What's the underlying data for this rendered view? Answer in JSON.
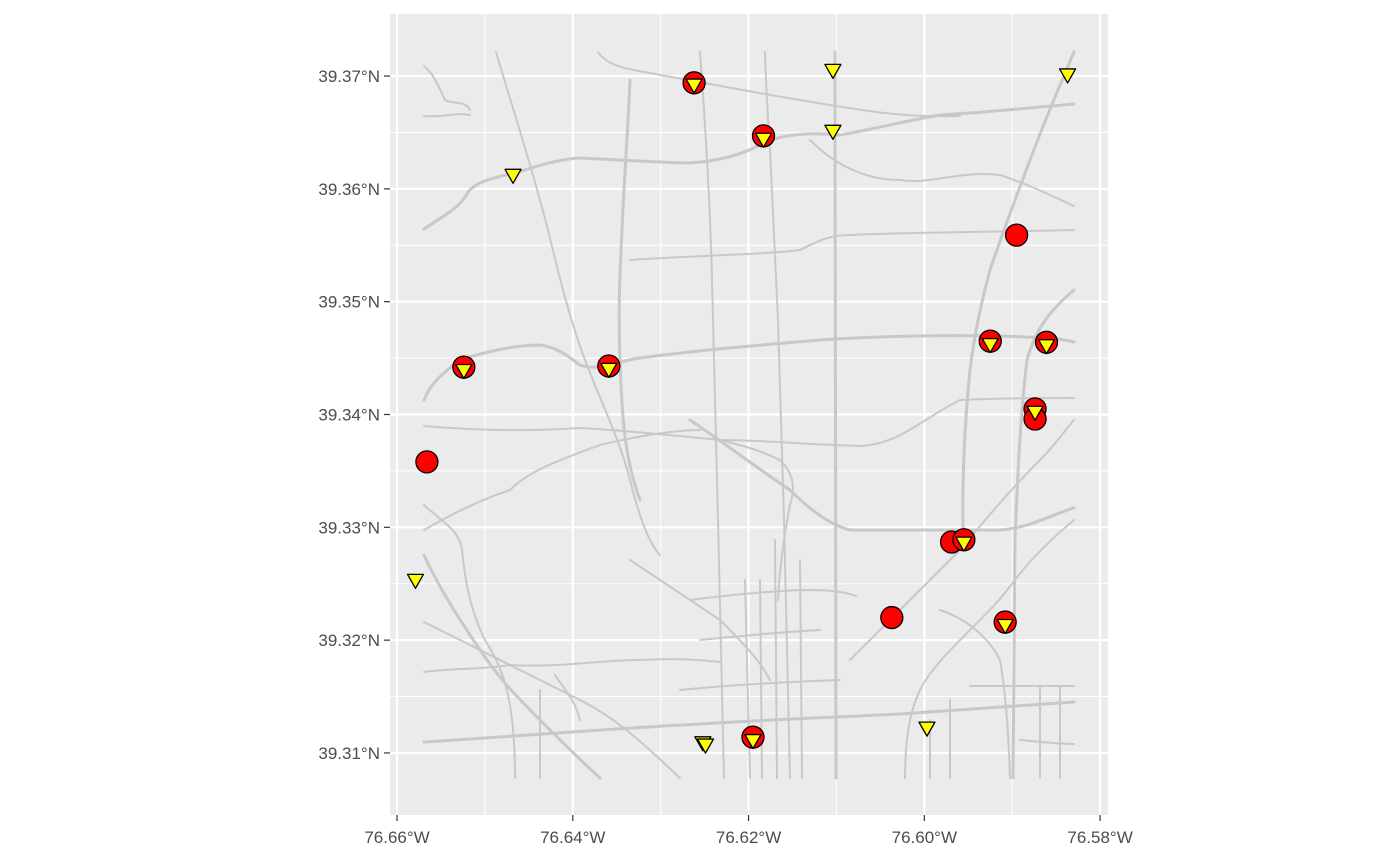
{
  "map": {
    "x_axis": {
      "ticks": [
        -76.66,
        -76.64,
        -76.62,
        -76.6,
        -76.58
      ],
      "tick_labels": [
        "76.66°W",
        "76.64°W",
        "76.62°W",
        "76.60°W",
        "76.58°W"
      ]
    },
    "y_axis": {
      "ticks": [
        39.31,
        39.32,
        39.33,
        39.34,
        39.35,
        39.36,
        39.37
      ],
      "tick_labels": [
        "39.31°N",
        "39.32°N",
        "39.33°N",
        "39.34°N",
        "39.35°N",
        "39.36°N",
        "39.37°N"
      ]
    },
    "colors": {
      "panel_background": "#ebebeb",
      "grid": "#ffffff",
      "roads": "#c8c8c8",
      "circle_fill": "#ff0000",
      "triangle_fill": "#ffff00",
      "outline": "#000000"
    }
  },
  "chart_data": {
    "type": "scatter",
    "xlim": [
      -76.6608,
      -76.5791
    ],
    "ylim": [
      39.3045,
      39.3755
    ],
    "grid": true,
    "series": [
      {
        "marker": "circle",
        "color": "#ff0000",
        "points": [
          {
            "lon": -76.6262,
            "lat": 39.3694
          },
          {
            "lon": -76.6183,
            "lat": 39.3647
          },
          {
            "lon": -76.5895,
            "lat": 39.3559
          },
          {
            "lon": -76.6524,
            "lat": 39.3442
          },
          {
            "lon": -76.6359,
            "lat": 39.3443
          },
          {
            "lon": -76.5925,
            "lat": 39.3465
          },
          {
            "lon": -76.5861,
            "lat": 39.3464
          },
          {
            "lon": -76.5874,
            "lat": 39.3405
          },
          {
            "lon": -76.5874,
            "lat": 39.3396
          },
          {
            "lon": -76.6566,
            "lat": 39.3358
          },
          {
            "lon": -76.5969,
            "lat": 39.3287
          },
          {
            "lon": -76.5955,
            "lat": 39.3289
          },
          {
            "lon": -76.6037,
            "lat": 39.322
          },
          {
            "lon": -76.5908,
            "lat": 39.3216
          },
          {
            "lon": -76.6195,
            "lat": 39.3114
          }
        ]
      },
      {
        "marker": "triangle-down",
        "color": "#ffff00",
        "points": [
          {
            "lon": -76.6262,
            "lat": 39.3692
          },
          {
            "lon": -76.6104,
            "lat": 39.3705
          },
          {
            "lon": -76.5837,
            "lat": 39.3701
          },
          {
            "lon": -76.6183,
            "lat": 39.3644
          },
          {
            "lon": -76.6104,
            "lat": 39.3651
          },
          {
            "lon": -76.6468,
            "lat": 39.3612
          },
          {
            "lon": -76.6524,
            "lat": 39.3439
          },
          {
            "lon": -76.6359,
            "lat": 39.344
          },
          {
            "lon": -76.5925,
            "lat": 39.3462
          },
          {
            "lon": -76.5861,
            "lat": 39.3461
          },
          {
            "lon": -76.5874,
            "lat": 39.3402
          },
          {
            "lon": -76.5955,
            "lat": 39.3286
          },
          {
            "lon": -76.6579,
            "lat": 39.3253
          },
          {
            "lon": -76.5908,
            "lat": 39.3213
          },
          {
            "lon": -76.6252,
            "lat": 39.3109
          },
          {
            "lon": -76.6249,
            "lat": 39.3107
          },
          {
            "lon": -76.6195,
            "lat": 39.3111
          },
          {
            "lon": -76.5997,
            "lat": 39.3122
          }
        ]
      }
    ]
  }
}
